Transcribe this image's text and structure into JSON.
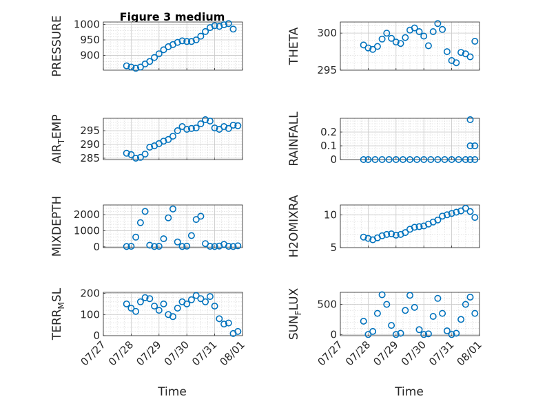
{
  "figure": {
    "title": "Figure 3 medium",
    "xlabel": "Time",
    "x_tick_labels": [
      "07/27",
      "07/28",
      "07/29",
      "07/30",
      "07/31",
      "08/01"
    ],
    "marker_color": "#0072bd",
    "background": "#ffffff",
    "axes_background": "#ffffff",
    "grid": true,
    "minor_grid": true
  },
  "chart_data": [
    {
      "type": "scatter",
      "ylabel": "PRESSURE",
      "xlim": [
        "07/27",
        "08/01"
      ],
      "ylim": [
        852,
        1008
      ],
      "yticks": [
        900,
        950,
        1000
      ],
      "x": [
        "07/27 20:00",
        "07/28 00:00",
        "07/28 04:00",
        "07/28 08:00",
        "07/28 12:00",
        "07/28 16:00",
        "07/28 20:00",
        "07/29 00:00",
        "07/29 04:00",
        "07/29 08:00",
        "07/29 12:00",
        "07/29 16:00",
        "07/29 20:00",
        "07/30 00:00",
        "07/30 04:00",
        "07/30 08:00",
        "07/30 12:00",
        "07/30 16:00",
        "07/30 20:00",
        "07/31 00:00",
        "07/31 04:00",
        "07/31 08:00",
        "07/31 12:00",
        "07/31 16:00"
      ],
      "y": [
        866,
        862,
        858,
        862,
        872,
        880,
        893,
        905,
        918,
        928,
        935,
        942,
        947,
        945,
        945,
        950,
        962,
        977,
        990,
        996,
        994,
        999,
        1003,
        985
      ]
    },
    {
      "type": "scatter",
      "ylabel": "THETA",
      "xlim": [
        "07/27",
        "08/01"
      ],
      "ylim": [
        295,
        301.5
      ],
      "yticks": [
        295,
        300
      ],
      "x": [
        "07/27 20:00",
        "07/28 00:00",
        "07/28 04:00",
        "07/28 08:00",
        "07/28 12:00",
        "07/28 16:00",
        "07/28 20:00",
        "07/29 00:00",
        "07/29 04:00",
        "07/29 08:00",
        "07/29 12:00",
        "07/29 16:00",
        "07/29 20:00",
        "07/30 00:00",
        "07/30 04:00",
        "07/30 08:00",
        "07/30 12:00",
        "07/30 16:00",
        "07/30 20:00",
        "07/31 00:00",
        "07/31 04:00",
        "07/31 08:00",
        "07/31 12:00",
        "07/31 16:00",
        "07/31 20:00"
      ],
      "y": [
        298.4,
        298.0,
        297.8,
        298.2,
        299.2,
        300.0,
        299.3,
        298.8,
        298.6,
        299.4,
        300.4,
        300.7,
        300.2,
        299.6,
        298.3,
        300.2,
        301.3,
        300.5,
        297.5,
        296.3,
        296.0,
        297.4,
        297.2,
        296.8,
        298.9
      ]
    },
    {
      "type": "scatter",
      "ylabel": "AIR_TEMP",
      "xlim": [
        "07/27",
        "08/01"
      ],
      "ylim": [
        284.5,
        299.5
      ],
      "yticks": [
        285,
        290,
        295
      ],
      "x": [
        "07/27 20:00",
        "07/28 00:00",
        "07/28 04:00",
        "07/28 08:00",
        "07/28 12:00",
        "07/28 16:00",
        "07/28 20:00",
        "07/29 00:00",
        "07/29 04:00",
        "07/29 08:00",
        "07/29 12:00",
        "07/29 16:00",
        "07/29 20:00",
        "07/30 00:00",
        "07/30 04:00",
        "07/30 08:00",
        "07/30 12:00",
        "07/30 16:00",
        "07/30 20:00",
        "07/31 00:00",
        "07/31 04:00",
        "07/31 08:00",
        "07/31 12:00",
        "07/31 16:00",
        "07/31 20:00"
      ],
      "y": [
        286.8,
        286.3,
        285.0,
        285.3,
        286.5,
        289.0,
        289.5,
        290.3,
        291.2,
        291.8,
        293.0,
        295.0,
        296.5,
        295.5,
        295.8,
        296.0,
        297.5,
        299.0,
        298.5,
        296.0,
        295.5,
        296.5,
        295.8,
        297.0,
        296.8
      ]
    },
    {
      "type": "scatter",
      "ylabel": "RAINFALL",
      "xlim": [
        "07/27",
        "08/01"
      ],
      "ylim": [
        0,
        0.3
      ],
      "yticks": [
        0,
        0.1,
        0.2
      ],
      "x": [
        "07/27 20:00",
        "07/28 00:00",
        "07/28 06:00",
        "07/28 12:00",
        "07/28 18:00",
        "07/29 00:00",
        "07/29 06:00",
        "07/29 12:00",
        "07/29 18:00",
        "07/30 00:00",
        "07/30 06:00",
        "07/30 12:00",
        "07/30 18:00",
        "07/31 00:00",
        "07/31 06:00",
        "07/31 12:00",
        "07/31 16:00",
        "07/31 16:00",
        "07/31 16:00",
        "07/31 20:00",
        "07/31 20:00"
      ],
      "y": [
        0,
        0,
        0,
        0,
        0,
        0,
        0,
        0,
        0,
        0,
        0,
        0,
        0,
        0,
        0,
        0,
        0,
        0.1,
        0.29,
        0.1,
        0
      ]
    },
    {
      "type": "scatter",
      "ylabel": "MIXDEPTH",
      "xlim": [
        "07/27",
        "08/01"
      ],
      "ylim": [
        -50,
        2600
      ],
      "yticks": [
        0,
        1000,
        2000
      ],
      "x": [
        "07/27 20:00",
        "07/28 00:00",
        "07/28 04:00",
        "07/28 08:00",
        "07/28 12:00",
        "07/28 16:00",
        "07/28 20:00",
        "07/29 00:00",
        "07/29 04:00",
        "07/29 08:00",
        "07/29 12:00",
        "07/29 16:00",
        "07/29 20:00",
        "07/30 00:00",
        "07/30 04:00",
        "07/30 08:00",
        "07/30 12:00",
        "07/30 16:00",
        "07/30 20:00",
        "07/31 00:00",
        "07/31 04:00",
        "07/31 08:00",
        "07/31 12:00",
        "07/31 16:00",
        "07/31 20:00"
      ],
      "y": [
        20,
        30,
        600,
        1500,
        2200,
        100,
        20,
        30,
        500,
        1800,
        2350,
        300,
        20,
        40,
        700,
        1700,
        1900,
        200,
        30,
        20,
        50,
        150,
        30,
        20,
        60
      ]
    },
    {
      "type": "scatter",
      "ylabel": "H2OMIXRA",
      "xlim": [
        "07/27",
        "08/01"
      ],
      "ylim": [
        5,
        11.5
      ],
      "yticks": [
        5,
        10
      ],
      "x": [
        "07/27 20:00",
        "07/28 00:00",
        "07/28 04:00",
        "07/28 08:00",
        "07/28 12:00",
        "07/28 16:00",
        "07/28 20:00",
        "07/29 00:00",
        "07/29 04:00",
        "07/29 08:00",
        "07/29 12:00",
        "07/29 16:00",
        "07/29 20:00",
        "07/30 00:00",
        "07/30 04:00",
        "07/30 08:00",
        "07/30 12:00",
        "07/30 16:00",
        "07/30 20:00",
        "07/31 00:00",
        "07/31 04:00",
        "07/31 08:00",
        "07/31 12:00",
        "07/31 16:00",
        "07/31 20:00"
      ],
      "y": [
        6.6,
        6.4,
        6.2,
        6.5,
        6.8,
        7.0,
        7.1,
        6.9,
        7.0,
        7.3,
        7.8,
        8.1,
        8.2,
        8.3,
        8.6,
        8.9,
        9.2,
        9.8,
        10.0,
        10.2,
        10.4,
        10.6,
        11.0,
        10.5,
        9.6
      ]
    },
    {
      "type": "scatter",
      "ylabel": "TERR_MSL",
      "xlim": [
        "07/27",
        "08/01"
      ],
      "ylim": [
        0,
        205
      ],
      "yticks": [
        0,
        100,
        200
      ],
      "x": [
        "07/27 20:00",
        "07/28 00:00",
        "07/28 04:00",
        "07/28 08:00",
        "07/28 12:00",
        "07/28 16:00",
        "07/28 20:00",
        "07/29 00:00",
        "07/29 04:00",
        "07/29 08:00",
        "07/29 12:00",
        "07/29 16:00",
        "07/29 20:00",
        "07/30 00:00",
        "07/30 04:00",
        "07/30 08:00",
        "07/30 12:00",
        "07/30 16:00",
        "07/30 20:00",
        "07/31 00:00",
        "07/31 04:00",
        "07/31 08:00",
        "07/31 12:00",
        "07/31 16:00",
        "07/31 20:00"
      ],
      "y": [
        150,
        130,
        115,
        160,
        180,
        175,
        140,
        120,
        150,
        100,
        90,
        130,
        160,
        150,
        170,
        190,
        175,
        160,
        185,
        140,
        80,
        55,
        60,
        10,
        20
      ]
    },
    {
      "type": "scatter",
      "ylabel": "SUN_FLUX",
      "xlim": [
        "07/27",
        "08/01"
      ],
      "ylim": [
        -20,
        700
      ],
      "yticks": [
        0,
        500
      ],
      "x": [
        "07/27 20:00",
        "07/28 00:00",
        "07/28 04:00",
        "07/28 08:00",
        "07/28 12:00",
        "07/28 16:00",
        "07/28 20:00",
        "07/29 00:00",
        "07/29 04:00",
        "07/29 08:00",
        "07/29 12:00",
        "07/29 16:00",
        "07/29 20:00",
        "07/30 00:00",
        "07/30 04:00",
        "07/30 08:00",
        "07/30 12:00",
        "07/30 16:00",
        "07/30 20:00",
        "07/31 00:00",
        "07/31 04:00",
        "07/31 08:00",
        "07/31 12:00",
        "07/31 16:00",
        "07/31 20:00"
      ],
      "y": [
        220,
        0,
        50,
        350,
        660,
        500,
        150,
        0,
        20,
        400,
        650,
        450,
        80,
        0,
        10,
        300,
        600,
        350,
        60,
        0,
        20,
        250,
        500,
        620,
        350
      ]
    }
  ]
}
